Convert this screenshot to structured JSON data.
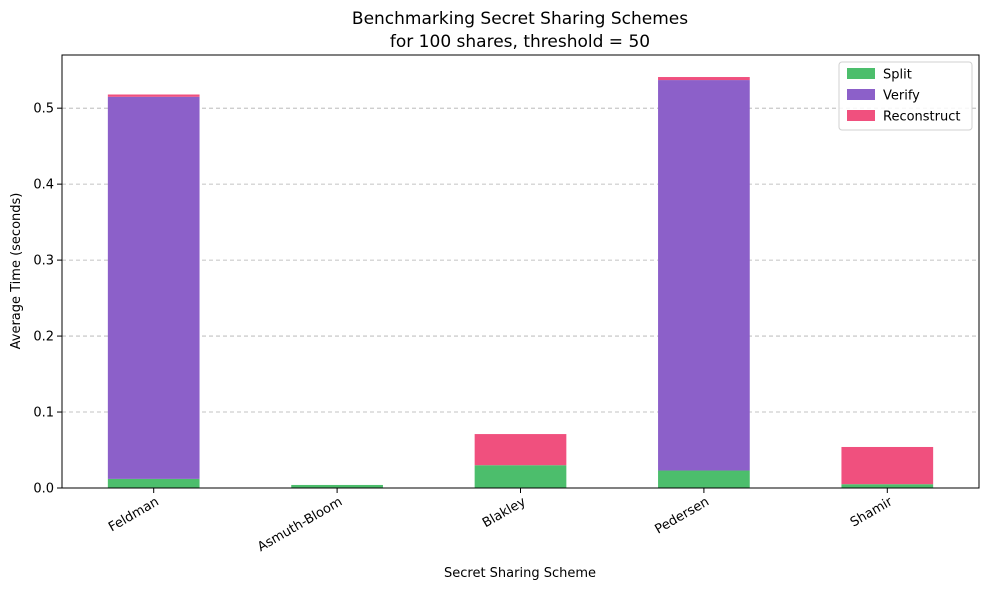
{
  "chart_data": {
    "type": "bar",
    "stacked": true,
    "title": [
      "Benchmarking Secret Sharing Schemes",
      "for 100 shares, threshold = 50"
    ],
    "xlabel": "Secret Sharing Scheme",
    "ylabel": "Average Time (seconds)",
    "ylim": [
      0,
      0.57
    ],
    "yticks": [
      "0.0",
      "0.1",
      "0.2",
      "0.3",
      "0.4",
      "0.5"
    ],
    "grid": "y-dashed",
    "legend_position": "top-right",
    "categories": [
      "Feldman",
      "Asmuth-Bloom",
      "Blakley",
      "Pedersen",
      "Shamir"
    ],
    "series": [
      {
        "name": "Split",
        "color": "#4cbe6c",
        "values": [
          0.012,
          0.004,
          0.03,
          0.023,
          0.005
        ]
      },
      {
        "name": "Verify",
        "color": "#8c60c9",
        "values": [
          0.503,
          0.0,
          0.0,
          0.514,
          0.0
        ]
      },
      {
        "name": "Reconstruct",
        "color": "#f0507e",
        "values": [
          0.003,
          0.0,
          0.041,
          0.004,
          0.049
        ]
      }
    ]
  }
}
